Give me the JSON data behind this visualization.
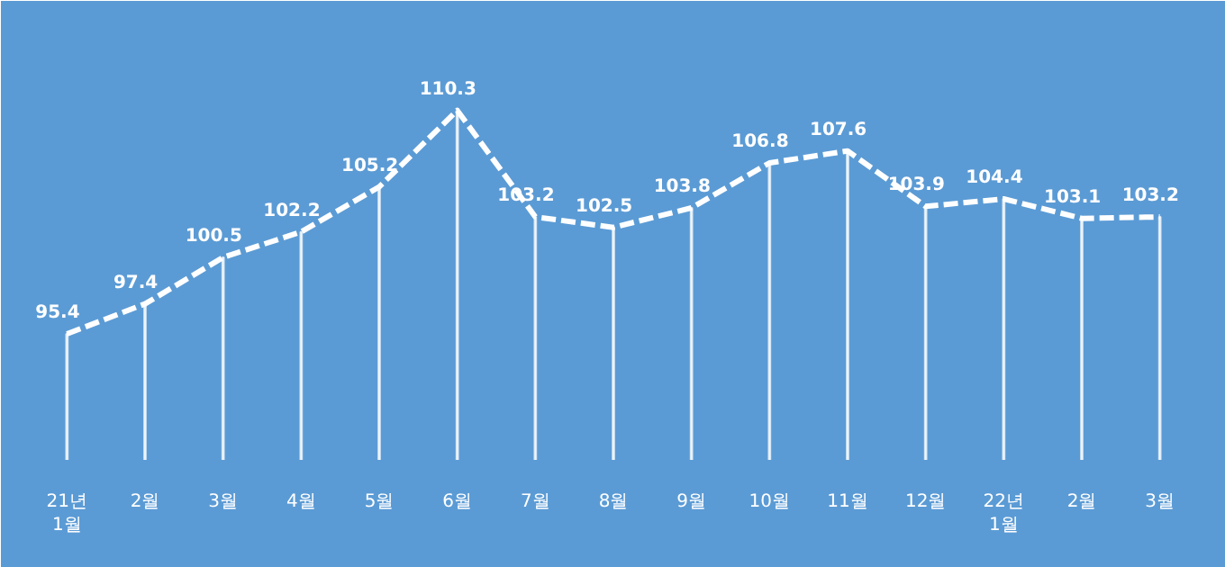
{
  "chart_data": {
    "type": "line",
    "categories": [
      "21년\n1월",
      "2월",
      "3월",
      "4월",
      "5월",
      "6월",
      "7월",
      "8월",
      "9월",
      "10월",
      "11월",
      "12월",
      "22년\n1월",
      "2월",
      "3월"
    ],
    "ylim": [
      87,
      114
    ],
    "grid": false,
    "marker": "none",
    "line_style": "dashed",
    "series": [
      {
        "type": "bar",
        "color": "#ffffff",
        "values": [
          95.4,
          97.4,
          100.5,
          102.2,
          105.2,
          110.3,
          103.2,
          102.5,
          103.8,
          106.8,
          107.6,
          103.9,
          104.4,
          103.1,
          103.2
        ]
      },
      {
        "color": "#ffffff",
        "values": [
          95.4,
          97.4,
          100.5,
          102.2,
          105.2,
          110.3,
          103.2,
          102.5,
          103.8,
          106.8,
          107.6,
          103.9,
          104.4,
          103.1,
          103.2
        ],
        "value_labels": [
          "95.4",
          "97.4",
          "100.5",
          "102.2",
          "105.2",
          "110.3",
          "103.2",
          "102.5",
          "103.8",
          "106.8",
          "107.6",
          "103.9",
          "104.4",
          "103.1",
          "103.2"
        ]
      }
    ]
  }
}
